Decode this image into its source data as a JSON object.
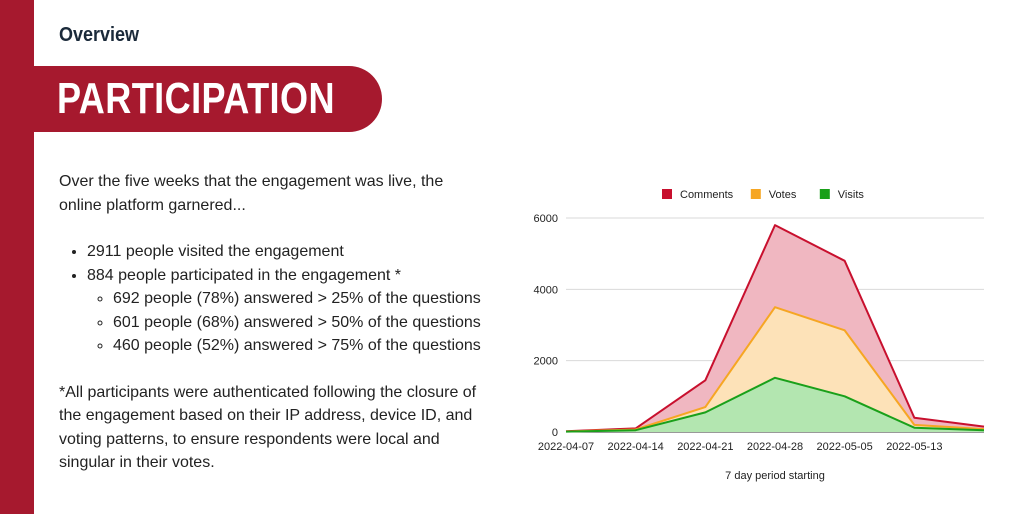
{
  "header": {
    "section": "Overview",
    "title": "PARTICIPATION"
  },
  "body": {
    "intro": "Over the five weeks that the engagement was live, the online platform garnered...",
    "bullets": [
      {
        "text": "2911 people visited the engagement"
      },
      {
        "text": "884 people participated in the engagement *",
        "sub": [
          "692 people (78%) answered > 25% of the questions",
          "601 people (68%) answered > 50% of the questions",
          "460 people (52%) answered > 75% of the questions"
        ]
      }
    ],
    "footnote": "*All participants were authenticated following the closure of the engagement based on their IP address, device ID, and voting patterns, to ensure respondents were local and singular in their votes."
  },
  "colors": {
    "brand": "#a6192e",
    "comments": "#c8102e",
    "votes": "#f6a623",
    "visits": "#1aa01a"
  },
  "chart_data": {
    "type": "area",
    "xlabel": "7 day period starting",
    "ylabel": "",
    "x": [
      "2022-04-07",
      "2022-04-14",
      "2022-04-21",
      "2022-04-28",
      "2022-05-05",
      "2022-05-13",
      ""
    ],
    "x_tick_labels": [
      "2022-04-07",
      "2022-04-14",
      "2022-04-21",
      "2022-04-28",
      "2022-05-05",
      "2022-05-13"
    ],
    "y_ticks": [
      0,
      2000,
      4000,
      6000
    ],
    "ylim": [
      0,
      6000
    ],
    "grid": true,
    "legend": "top",
    "series": [
      {
        "name": "Comments",
        "color": "#c8102e",
        "fill": "#f0b7c1",
        "values": [
          20,
          100,
          1450,
          5800,
          4800,
          400,
          150
        ]
      },
      {
        "name": "Votes",
        "color": "#f6a623",
        "fill": "#fde2b8",
        "values": [
          15,
          70,
          700,
          3500,
          2850,
          200,
          80
        ]
      },
      {
        "name": "Visits",
        "color": "#1aa01a",
        "fill": "#b3e6b0",
        "values": [
          10,
          50,
          550,
          1520,
          1000,
          120,
          50
        ]
      }
    ]
  }
}
